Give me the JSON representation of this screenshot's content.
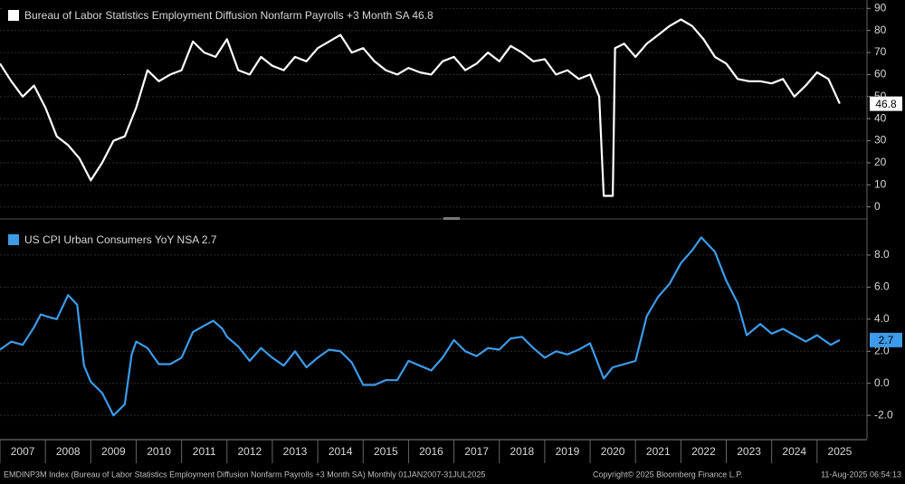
{
  "chart_data": [
    {
      "type": "line",
      "title": "Bureau of Labor Statistics Employment Diffusion Nonfarm Payrolls +3 Month SA 46.8",
      "color": "#ffffff",
      "x": [
        2007.0,
        2007.25,
        2007.5,
        2007.75,
        2008.0,
        2008.25,
        2008.5,
        2008.75,
        2009.0,
        2009.25,
        2009.5,
        2009.75,
        2010.0,
        2010.25,
        2010.5,
        2010.75,
        2011.0,
        2011.25,
        2011.5,
        2011.75,
        2012.0,
        2012.25,
        2012.5,
        2012.75,
        2013.0,
        2013.25,
        2013.5,
        2013.75,
        2014.0,
        2014.25,
        2014.5,
        2014.75,
        2015.0,
        2015.25,
        2015.5,
        2015.75,
        2016.0,
        2016.25,
        2016.5,
        2016.75,
        2017.0,
        2017.25,
        2017.5,
        2017.75,
        2018.0,
        2018.25,
        2018.5,
        2018.75,
        2019.0,
        2019.25,
        2019.5,
        2019.75,
        2020.0,
        2020.2,
        2020.3,
        2020.5,
        2020.55,
        2020.75,
        2021.0,
        2021.25,
        2021.5,
        2021.75,
        2022.0,
        2022.25,
        2022.5,
        2022.75,
        2023.0,
        2023.25,
        2023.5,
        2023.75,
        2024.0,
        2024.25,
        2024.5,
        2024.75,
        2025.0,
        2025.25,
        2025.5
      ],
      "values": [
        65,
        57,
        50,
        55,
        45,
        32,
        28,
        22,
        12,
        20,
        30,
        32,
        45,
        62,
        57,
        60,
        62,
        75,
        70,
        68,
        76,
        62,
        60,
        68,
        64,
        62,
        68,
        66,
        72,
        75,
        78,
        70,
        72,
        66,
        62,
        60,
        63,
        61,
        60,
        66,
        68,
        62,
        65,
        70,
        66,
        73,
        70,
        66,
        67,
        60,
        62,
        58,
        60,
        50,
        5,
        5,
        72,
        74,
        68,
        74,
        78,
        82,
        85,
        82,
        76,
        68,
        65,
        58,
        57,
        57,
        56,
        58,
        50,
        55,
        61,
        58,
        46.8
      ],
      "xlim": [
        2007,
        2026.1
      ],
      "ylim": [
        -3,
        93
      ],
      "yticks": [
        0,
        10,
        20,
        30,
        40,
        50,
        60,
        70,
        80,
        90
      ],
      "grid": true
    },
    {
      "type": "line",
      "title": "US CPI Urban Consumers YoY NSA 2.7",
      "color": "#3d9be9",
      "x": [
        2007.0,
        2007.25,
        2007.5,
        2007.75,
        2007.9,
        2008.0,
        2008.25,
        2008.5,
        2008.7,
        2008.85,
        2009.0,
        2009.25,
        2009.5,
        2009.75,
        2009.9,
        2010.0,
        2010.25,
        2010.5,
        2010.75,
        2011.0,
        2011.25,
        2011.5,
        2011.7,
        2011.9,
        2012.0,
        2012.25,
        2012.5,
        2012.75,
        2013.0,
        2013.25,
        2013.5,
        2013.75,
        2014.0,
        2014.25,
        2014.5,
        2014.75,
        2015.0,
        2015.25,
        2015.5,
        2015.75,
        2016.0,
        2016.25,
        2016.5,
        2016.75,
        2017.0,
        2017.25,
        2017.5,
        2017.75,
        2018.0,
        2018.25,
        2018.5,
        2018.75,
        2019.0,
        2019.25,
        2019.5,
        2019.75,
        2020.0,
        2020.3,
        2020.5,
        2020.75,
        2021.0,
        2021.25,
        2021.5,
        2021.75,
        2022.0,
        2022.25,
        2022.45,
        2022.75,
        2023.0,
        2023.25,
        2023.45,
        2023.75,
        2024.0,
        2024.25,
        2024.5,
        2024.75,
        2025.0,
        2025.3,
        2025.5
      ],
      "values": [
        2.1,
        2.6,
        2.4,
        3.5,
        4.3,
        4.2,
        4.0,
        5.5,
        4.9,
        1.1,
        0.1,
        -0.6,
        -2.0,
        -1.3,
        1.8,
        2.6,
        2.2,
        1.2,
        1.2,
        1.6,
        3.2,
        3.6,
        3.9,
        3.4,
        2.9,
        2.3,
        1.4,
        2.2,
        1.6,
        1.1,
        2.0,
        1.0,
        1.6,
        2.1,
        2.0,
        1.3,
        -0.1,
        -0.1,
        0.2,
        0.2,
        1.4,
        1.1,
        0.8,
        1.6,
        2.7,
        2.0,
        1.7,
        2.2,
        2.1,
        2.8,
        2.9,
        2.2,
        1.6,
        2.0,
        1.8,
        2.1,
        2.5,
        0.3,
        1.0,
        1.2,
        1.4,
        4.2,
        5.4,
        6.2,
        7.5,
        8.3,
        9.1,
        8.2,
        6.4,
        5.0,
        3.0,
        3.7,
        3.1,
        3.4,
        3.0,
        2.6,
        3.0,
        2.4,
        2.7
      ],
      "xlim": [
        2007,
        2026.1
      ],
      "ylim": [
        -3.4,
        9.8
      ],
      "yticks": [
        {
          "value": -2,
          "label": "-2.0"
        },
        {
          "value": 0,
          "label": "0.0"
        },
        {
          "value": 2,
          "label": "2.0"
        },
        {
          "value": 4,
          "label": "4.0"
        },
        {
          "value": 6,
          "label": "6.0"
        },
        {
          "value": 8,
          "label": "8.0"
        }
      ],
      "xticks": [
        2007,
        2008,
        2009,
        2010,
        2011,
        2012,
        2013,
        2014,
        2015,
        2016,
        2017,
        2018,
        2019,
        2020,
        2021,
        2022,
        2023,
        2024,
        2025
      ],
      "grid": true
    }
  ],
  "footer": {
    "source": "EMDINP3M Index (Bureau of Labor Statistics Employment Diffusion Nonfarm Payrolls +3 Month SA)  Monthly 01JAN2007-31JUL2025",
    "copyright": "Copyright© 2025 Bloomberg Finance L.P.",
    "timestamp": "11-Aug-2025 06:54:13"
  }
}
